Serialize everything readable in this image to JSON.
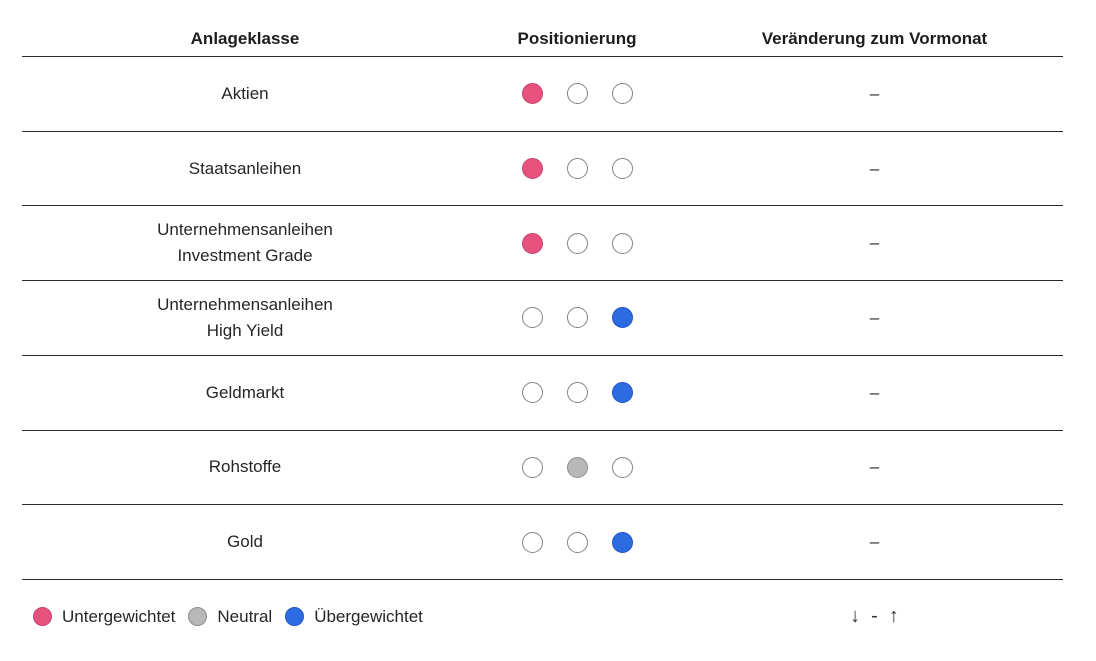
{
  "table": {
    "headers": [
      "Anlageklasse",
      "Positionierung",
      "Veränderung zum Vormonat"
    ],
    "rows": [
      {
        "name_lines": [
          "Aktien"
        ],
        "positioning": "underweight",
        "change": "–"
      },
      {
        "name_lines": [
          "Staatsanleihen"
        ],
        "positioning": "underweight",
        "change": "–"
      },
      {
        "name_lines": [
          "Unternehmensanleihen",
          "Investment Grade"
        ],
        "positioning": "underweight",
        "change": "–"
      },
      {
        "name_lines": [
          "Unternehmensanleihen",
          "High Yield"
        ],
        "positioning": "overweight",
        "change": "–"
      },
      {
        "name_lines": [
          "Geldmarkt"
        ],
        "positioning": "overweight",
        "change": "–"
      },
      {
        "name_lines": [
          "Rohstoffe"
        ],
        "positioning": "neutral",
        "change": "–"
      },
      {
        "name_lines": [
          "Gold"
        ],
        "positioning": "overweight",
        "change": "–"
      }
    ]
  },
  "legend": {
    "items": [
      {
        "key": "underweight",
        "label": "Untergewichtet"
      },
      {
        "key": "neutral",
        "label": "Neutral"
      },
      {
        "key": "overweight",
        "label": "Übergewichtet"
      }
    ]
  },
  "change_legend": {
    "down": "↓",
    "dash": "-",
    "up": "↑"
  },
  "colors": {
    "underweight": "#E6527D",
    "underweight_border": "#C84570",
    "neutral": "#B8B8B8",
    "neutral_border": "#8E8E8E",
    "overweight": "#2D6BE3",
    "overweight_border": "#2355C4",
    "empty_circle_border": "#838383",
    "divider_line": "#2B2B2B",
    "text": "#222222"
  }
}
